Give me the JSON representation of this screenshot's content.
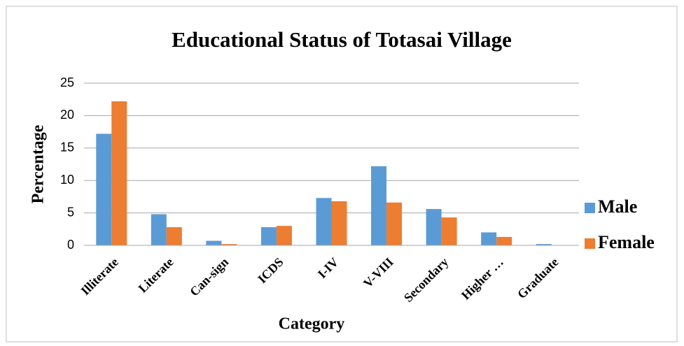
{
  "chart_data": {
    "type": "bar",
    "title": "Educational Status of Totasai Village",
    "x_label": "Category",
    "y_label": "Percentage",
    "categories": [
      "Illiterate",
      "Literate",
      "Can-sign",
      "ICDS",
      "I-IV",
      "V-VIII",
      "Secondary",
      "Higher …",
      "Graduate"
    ],
    "series": [
      {
        "name": "Male",
        "color": "#5b9bd5",
        "values": [
          17.2,
          4.8,
          0.7,
          2.8,
          7.3,
          12.2,
          5.6,
          2.0,
          0.2
        ]
      },
      {
        "name": "Female",
        "color": "#ed7d31",
        "values": [
          22.2,
          2.8,
          0.2,
          3.0,
          6.8,
          6.6,
          4.3,
          1.3,
          0
        ]
      }
    ],
    "ylim": [
      0,
      25
    ],
    "yticks": [
      0,
      5,
      10,
      15,
      20,
      25
    ],
    "grid": true,
    "legend": "right"
  }
}
